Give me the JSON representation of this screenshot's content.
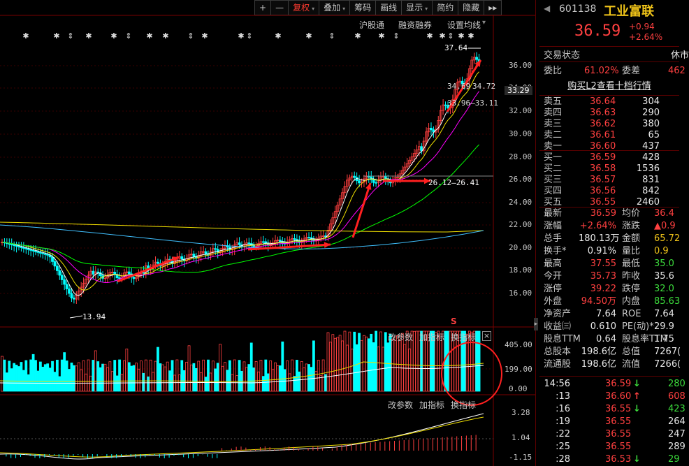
{
  "toolbar": {
    "buttons": [
      {
        "label": "+",
        "active": false,
        "caret": false
      },
      {
        "label": "—",
        "active": false,
        "caret": false
      },
      {
        "label": "复权",
        "active": true,
        "caret": true
      },
      {
        "label": "叠加",
        "active": false,
        "caret": true
      },
      {
        "label": "筹码",
        "active": false,
        "caret": false
      },
      {
        "label": "画线",
        "active": false,
        "caret": false
      },
      {
        "label": "显示",
        "active": false,
        "caret": true
      },
      {
        "label": "简约",
        "active": false,
        "caret": false
      },
      {
        "label": "隐藏",
        "active": false,
        "caret": false
      }
    ],
    "more": "▸▸"
  },
  "chart_nav": {
    "item1": "沪股通",
    "item2": "融资融券",
    "item3": "设置均线",
    "caret": "▾"
  },
  "price_axis": [
    "36.00",
    "34.00",
    "32.00",
    "30.00",
    "28.00",
    "26.00",
    "24.00",
    "22.00",
    "20.00",
    "18.00",
    "16.00"
  ],
  "price_tag": "33.29",
  "annotations": {
    "high": "37.64",
    "low": "13.94",
    "range": "26.12—26.41",
    "ma_a": "34.69",
    "ma_b": "34.72",
    "ma_c": "33.96—33.11"
  },
  "volume_panel": {
    "btn1": "改参数",
    "btn2": "加指标",
    "btn3": "换指标",
    "close": "×",
    "axis": [
      "405.00",
      "199.00",
      "0.00"
    ],
    "marker": "S"
  },
  "macd_panel": {
    "btn1": "改参数",
    "btn2": "加指标",
    "btn3": "换指标",
    "axis": [
      "3.28",
      "1.04",
      "-1.15"
    ]
  },
  "stock": {
    "code": "601138",
    "name": "工业富联",
    "price": "36.59",
    "change": "+0.94",
    "change_pct": "+2.64%"
  },
  "status": {
    "label": "交易状态",
    "value": "休市"
  },
  "ratio": {
    "wb_label": "委比",
    "wb": "61.02%",
    "wc_label": "委差",
    "wc": "462"
  },
  "l2_link": "购买L2查看十档行情",
  "asks": [
    {
      "label": "卖五",
      "price": "36.64",
      "vol": "304"
    },
    {
      "label": "卖四",
      "price": "36.63",
      "vol": "290"
    },
    {
      "label": "卖三",
      "price": "36.62",
      "vol": "380"
    },
    {
      "label": "卖二",
      "price": "36.61",
      "vol": "65"
    },
    {
      "label": "卖一",
      "price": "36.60",
      "vol": "437"
    }
  ],
  "bids": [
    {
      "label": "买一",
      "price": "36.59",
      "vol": "428"
    },
    {
      "label": "买二",
      "price": "36.58",
      "vol": "1536"
    },
    {
      "label": "买三",
      "price": "36.57",
      "vol": "831"
    },
    {
      "label": "买四",
      "price": "36.56",
      "vol": "842"
    },
    {
      "label": "买五",
      "price": "36.55",
      "vol": "2460"
    }
  ],
  "stats": [
    {
      "l1": "最新",
      "v1": "36.59",
      "c1": "red",
      "l2": "均价",
      "v2": "36.4",
      "c2": "red"
    },
    {
      "l1": "涨幅",
      "v1": "+2.64%",
      "c1": "red",
      "l2": "涨跌",
      "v2": "▲0.9",
      "c2": "red"
    },
    {
      "l1": "总手",
      "v1": "180.13万",
      "c1": "wht",
      "l2": "金额",
      "v2": "65.72",
      "c2": "yel"
    },
    {
      "l1": "换手*",
      "v1": "0.91%",
      "c1": "wht",
      "l2": "量比",
      "v2": "0.9",
      "c2": "yel"
    },
    {
      "l1": "最高",
      "v1": "37.55",
      "c1": "red",
      "l2": "最低",
      "v2": "35.0",
      "c2": "grn"
    },
    {
      "l1": "今开",
      "v1": "35.73",
      "c1": "red",
      "l2": "昨收",
      "v2": "35.6",
      "c2": "wht"
    },
    {
      "l1": "涨停",
      "v1": "39.22",
      "c1": "red",
      "l2": "跌停",
      "v2": "32.0",
      "c2": "grn"
    },
    {
      "l1": "外盘",
      "v1": "94.50万",
      "c1": "red",
      "l2": "内盘",
      "v2": "85.63",
      "c2": "grn"
    },
    {
      "l1": "净资产",
      "v1": "7.64",
      "c1": "wht",
      "l2": "ROE",
      "v2": "7.64",
      "c2": "wht"
    },
    {
      "l1": "收益㈢",
      "v1": "0.610",
      "c1": "wht",
      "l2": "PE(动)*",
      "v2": "29.9",
      "c2": "wht"
    },
    {
      "l1": "股息TTM",
      "v1": "0.64",
      "c1": "wht",
      "l2": "股息率TTM",
      "v2": "1.75",
      "c2": "wht"
    },
    {
      "l1": "总股本",
      "v1": "198.6亿",
      "c1": "wht",
      "l2": "总值",
      "v2": "7267(",
      "c2": "wht"
    },
    {
      "l1": "流通股",
      "v1": "198.6亿",
      "c1": "wht",
      "l2": "流值",
      "v2": "7266(",
      "c2": "wht"
    }
  ],
  "ticks": [
    {
      "time": "14:56",
      "price": "36.59",
      "dir": "↓",
      "dcolor": "grn",
      "vol": "280"
    },
    {
      "time": ":13",
      "price": "36.60",
      "dir": "↑",
      "dcolor": "red",
      "vol": "608"
    },
    {
      "time": ":16",
      "price": "36.55",
      "dir": "↓",
      "dcolor": "grn",
      "vol": "423"
    },
    {
      "time": ":19",
      "price": "36.55",
      "dir": "",
      "dcolor": "",
      "vol": "264"
    },
    {
      "time": ":22",
      "price": "36.55",
      "dir": "",
      "dcolor": "",
      "vol": "247"
    },
    {
      "time": ":25",
      "price": "36.55",
      "dir": "",
      "dcolor": "",
      "vol": "289"
    },
    {
      "time": ":28",
      "price": "36.53",
      "dir": "↓",
      "dcolor": "grn",
      "vol": "29"
    }
  ],
  "colors": {
    "up": "#ff4040",
    "down": "#00ffff",
    "ma5": "#ffffff",
    "ma10": "#f0e000",
    "ma20": "#ff00ff",
    "ma60": "#00ff00",
    "arrow": "#ff2020",
    "circle": "#ff2020"
  }
}
